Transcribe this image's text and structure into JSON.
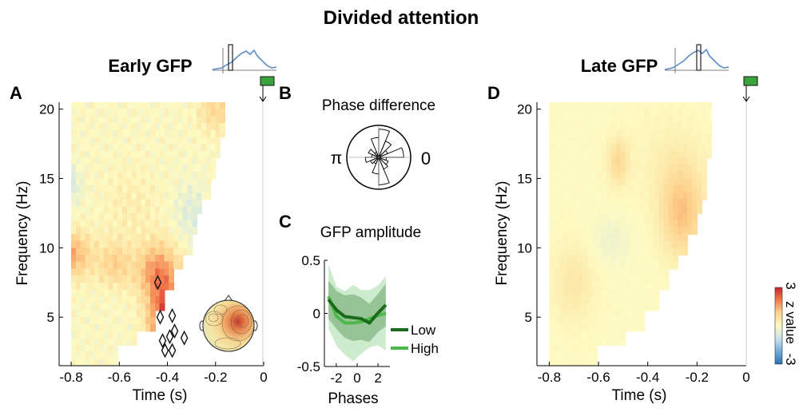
{
  "figure": {
    "title": "Divided attention",
    "colorbar": {
      "label": "z value",
      "max_label": "3",
      "min_label": "-3",
      "range": [
        -3,
        3
      ]
    }
  },
  "chart_data": [
    {
      "panel": "A",
      "type": "heatmap",
      "title": "Early GFP",
      "xlabel": "Time (s)",
      "ylabel": "Frequency (Hz)",
      "xlim": [
        -0.85,
        0
      ],
      "ylim": [
        1.5,
        20.5
      ],
      "xticks": [
        -0.8,
        -0.6,
        -0.4,
        -0.2,
        0
      ],
      "xtick_labels": [
        "-0.8",
        "-0.6",
        "-0.4",
        "-0.2",
        "0"
      ],
      "yticks": [
        5,
        10,
        15,
        20
      ],
      "ytick_labels": [
        "5",
        "10",
        "15",
        "20"
      ],
      "value_range": [
        -3,
        3
      ],
      "edge_times": [
        -0.16,
        -0.17,
        -0.18,
        -0.2,
        -0.23,
        -0.25,
        -0.28,
        -0.3,
        -0.34,
        -0.38,
        -0.42,
        -0.46,
        -0.52,
        -0.6
      ],
      "blobs": [
        {
          "t": -0.4,
          "f": 4.5,
          "st": 0.05,
          "sf": 1.8,
          "amp": 2.9
        },
        {
          "t": -0.44,
          "f": 8.2,
          "st": 0.06,
          "sf": 1.5,
          "amp": 1.7
        },
        {
          "t": -0.8,
          "f": 9.5,
          "st": 0.06,
          "sf": 1.2,
          "amp": 1.4
        },
        {
          "t": -0.62,
          "f": 8.8,
          "st": 0.05,
          "sf": 1.1,
          "amp": 0.9
        },
        {
          "t": -0.2,
          "f": 20,
          "st": 0.05,
          "sf": 1.2,
          "amp": 0.8
        },
        {
          "t": -0.55,
          "f": 13,
          "st": 0.08,
          "sf": 2,
          "amp": 0.3
        },
        {
          "t": -0.8,
          "f": 14.5,
          "st": 0.03,
          "sf": 1.0,
          "amp": -0.6
        },
        {
          "t": -0.3,
          "f": 12.5,
          "st": 0.05,
          "sf": 1.5,
          "amp": -0.5
        }
      ],
      "significant_points": [
        {
          "t": -0.44,
          "f": 7.5
        },
        {
          "t": -0.43,
          "f": 5.0
        },
        {
          "t": -0.42,
          "f": 3.3
        },
        {
          "t": -0.41,
          "f": 2.6
        },
        {
          "t": -0.38,
          "f": 2.6
        },
        {
          "t": -0.37,
          "f": 4.0
        },
        {
          "t": -0.38,
          "f": 5.1
        },
        {
          "t": -0.39,
          "f": 3.6
        },
        {
          "t": -0.33,
          "f": 3.5
        }
      ],
      "event_marker_time": 0,
      "inset": "topography"
    },
    {
      "panel": "B",
      "type": "polar_histogram",
      "title": "Phase difference",
      "left_label": "π",
      "right_label": "0",
      "bins": 16,
      "counts": [
        0.78,
        0.3,
        0.55,
        0.88,
        0.62,
        0.18,
        0.35,
        0.22,
        0.42,
        0.28,
        0.22,
        0.52,
        0.86,
        0.4,
        0.32,
        0.24
      ]
    },
    {
      "panel": "C",
      "type": "line",
      "title": "GFP amplitude",
      "xlabel": "Phases",
      "xlim": [
        -3.14,
        3.14
      ],
      "ylim": [
        -0.5,
        0.5
      ],
      "xticks": [
        -2,
        0,
        2
      ],
      "xtick_labels": [
        "-2",
        "0",
        "2"
      ],
      "yticks": [
        0.5,
        0,
        -0.5
      ],
      "ytick_labels": [
        "0.5",
        "0",
        "-0.5"
      ],
      "x": [
        -2.75,
        -1.96,
        -1.18,
        -0.39,
        0.39,
        1.18,
        1.96,
        2.75
      ],
      "series": [
        {
          "name": "Low",
          "color": "#1a6b1a",
          "values": [
            0.13,
            0.03,
            -0.03,
            -0.04,
            -0.05,
            -0.09,
            0.0,
            0.08
          ],
          "band": [
            0.18,
            0.18,
            0.2,
            0.22,
            0.2,
            0.18,
            0.18,
            0.2
          ]
        },
        {
          "name": "High",
          "color": "#4cb84c",
          "values": [
            0.16,
            -0.03,
            -0.09,
            -0.09,
            -0.08,
            -0.05,
            -0.02,
            0.0
          ],
          "band": [
            0.3,
            0.28,
            0.3,
            0.36,
            0.3,
            0.27,
            0.28,
            0.35
          ]
        }
      ],
      "legend_placement": "right"
    },
    {
      "panel": "D",
      "type": "heatmap",
      "title": "Late GFP",
      "xlabel": "Time (s)",
      "ylabel": "Frequency (Hz)",
      "xlim": [
        -0.85,
        0
      ],
      "ylim": [
        1.5,
        20.5
      ],
      "xticks": [
        -0.8,
        -0.6,
        -0.4,
        -0.2,
        0
      ],
      "xtick_labels": [
        "-0.8",
        "-0.6",
        "-0.4",
        "-0.2",
        "0"
      ],
      "yticks": [
        5,
        10,
        15,
        20
      ],
      "ytick_labels": [
        "5",
        "10",
        "15",
        "20"
      ],
      "value_range": [
        -3,
        3
      ],
      "edge_times": [
        -0.14,
        -0.14,
        -0.15,
        -0.16,
        -0.17,
        -0.19,
        -0.21,
        -0.24,
        -0.27,
        -0.31,
        -0.36,
        -0.42,
        -0.5,
        -0.6
      ],
      "blobs": [
        {
          "t": -0.26,
          "f": 12.5,
          "st": 0.06,
          "sf": 2.2,
          "amp": 1.1
        },
        {
          "t": -0.52,
          "f": 16.2,
          "st": 0.03,
          "sf": 1.2,
          "amp": 0.8
        },
        {
          "t": -0.7,
          "f": 7.5,
          "st": 0.06,
          "sf": 2.0,
          "amp": 0.45
        },
        {
          "t": -0.55,
          "f": 10.5,
          "st": 0.06,
          "sf": 1.2,
          "amp": -0.25
        },
        {
          "t": -0.3,
          "f": 16,
          "st": 0.1,
          "sf": 2.5,
          "amp": 0.25
        }
      ],
      "event_marker_time": 0
    }
  ]
}
